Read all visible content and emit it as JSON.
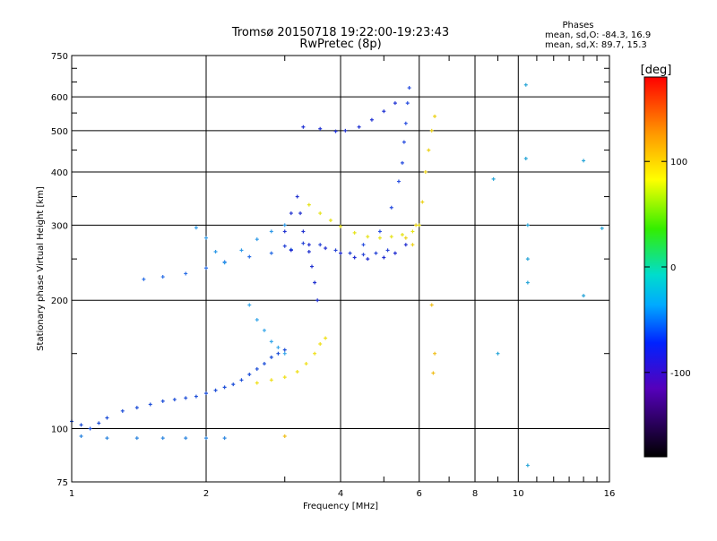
{
  "chart_data": {
    "type": "scatter",
    "title": "Tromsø 20150718 19:22:00-19:23:43",
    "subtitle": "RwPretec (8p)",
    "xlabel": "Frequency [MHz]",
    "ylabel": "Stationary phase Virtual Height [km]",
    "xscale": "log",
    "yscale": "log",
    "xlim": [
      1,
      16
    ],
    "ylim": [
      75,
      750
    ],
    "x_ticks": [
      1,
      2,
      4,
      6,
      8,
      10,
      16
    ],
    "x_tick_labels": [
      "1",
      "2",
      "4",
      "6",
      "8",
      "10",
      "16"
    ],
    "y_ticks": [
      75,
      100,
      200,
      300,
      400,
      500,
      600,
      750
    ],
    "y_tick_labels": [
      "75",
      "100",
      "200",
      "300",
      "400",
      "500",
      "600",
      "750"
    ],
    "grid": true,
    "stats": {
      "title": "Phases",
      "line_o": "mean, sd,O: -84.3, 16.9",
      "line_x": "mean, sd,X: 89.7, 15.3"
    },
    "colorbar": {
      "label": "[deg]",
      "ticks": [
        100,
        0,
        -100
      ],
      "tick_labels": [
        "100",
        "0",
        "-100"
      ],
      "range": [
        -180,
        180
      ],
      "placement": "right"
    },
    "series": [
      {
        "points": [
          [
            1.0,
            104
          ],
          [
            1.05,
            102
          ],
          [
            1.1,
            100
          ],
          [
            1.15,
            103
          ],
          [
            1.2,
            106
          ],
          [
            1.3,
            110
          ],
          [
            1.4,
            112
          ],
          [
            1.5,
            114
          ],
          [
            1.6,
            116
          ],
          [
            1.7,
            117
          ],
          [
            1.8,
            118
          ],
          [
            1.9,
            119
          ],
          [
            2.0,
            121
          ],
          [
            2.1,
            123
          ],
          [
            2.2,
            125
          ],
          [
            2.3,
            127
          ],
          [
            2.4,
            130
          ],
          [
            2.5,
            134
          ],
          [
            2.6,
            138
          ],
          [
            2.7,
            142
          ],
          [
            2.8,
            147
          ],
          [
            2.9,
            150
          ],
          [
            3.0,
            153
          ]
        ],
        "color": "#1e4fd8"
      },
      {
        "points": [
          [
            1.05,
            96
          ],
          [
            1.2,
            95
          ],
          [
            1.4,
            95
          ],
          [
            1.6,
            95
          ],
          [
            1.8,
            95
          ],
          [
            2.0,
            95
          ],
          [
            2.2,
            95
          ]
        ],
        "color": "#2f87e0"
      },
      {
        "points": [
          [
            1.45,
            224
          ],
          [
            1.6,
            227
          ],
          [
            1.8,
            231
          ],
          [
            2.0,
            238
          ],
          [
            2.2,
            246
          ],
          [
            2.5,
            253
          ],
          [
            2.8,
            258
          ],
          [
            3.1,
            263
          ]
        ],
        "color": "#2b6fe6"
      },
      {
        "points": [
          [
            1.9,
            296
          ],
          [
            2.0,
            280
          ],
          [
            2.1,
            260
          ],
          [
            2.2,
            245
          ],
          [
            2.4,
            262
          ],
          [
            2.6,
            278
          ],
          [
            2.8,
            290
          ],
          [
            3.0,
            300
          ]
        ],
        "color": "#2f9ae8"
      },
      {
        "points": [
          [
            2.5,
            195
          ],
          [
            2.6,
            180
          ],
          [
            2.7,
            170
          ],
          [
            2.8,
            160
          ],
          [
            2.9,
            155
          ],
          [
            3.0,
            150
          ]
        ],
        "color": "#3aa8ea"
      },
      {
        "points": [
          [
            3.0,
            290
          ],
          [
            3.1,
            320
          ],
          [
            3.2,
            350
          ],
          [
            3.25,
            320
          ],
          [
            3.3,
            290
          ],
          [
            3.4,
            260
          ],
          [
            3.45,
            240
          ],
          [
            3.5,
            220
          ],
          [
            3.55,
            200
          ]
        ],
        "color": "#2233d0"
      },
      {
        "points": [
          [
            3.1,
            262
          ],
          [
            3.4,
            270
          ],
          [
            3.7,
            265
          ],
          [
            4.0,
            258
          ],
          [
            4.3,
            252
          ],
          [
            4.6,
            250
          ],
          [
            5.0,
            252
          ],
          [
            5.3,
            258
          ],
          [
            5.6,
            270
          ]
        ],
        "color": "#1f2bd0"
      },
      {
        "points": [
          [
            3.0,
            268
          ],
          [
            3.3,
            272
          ],
          [
            3.6,
            270
          ],
          [
            3.9,
            262
          ],
          [
            4.2,
            258
          ],
          [
            4.5,
            256
          ],
          [
            4.8,
            258
          ],
          [
            5.1,
            262
          ]
        ],
        "color": "#2845d6"
      },
      {
        "points": [
          [
            3.3,
            510
          ],
          [
            3.6,
            505
          ],
          [
            3.9,
            498
          ],
          [
            4.1,
            500
          ],
          [
            4.4,
            510
          ],
          [
            4.7,
            530
          ],
          [
            5.0,
            555
          ],
          [
            5.3,
            580
          ]
        ],
        "color": "#2436d4"
      },
      {
        "points": [
          [
            4.5,
            270
          ],
          [
            4.9,
            290
          ],
          [
            5.2,
            330
          ],
          [
            5.4,
            380
          ],
          [
            5.5,
            420
          ],
          [
            5.55,
            470
          ],
          [
            5.6,
            520
          ],
          [
            5.65,
            580
          ],
          [
            5.7,
            630
          ]
        ],
        "color": "#2a4fe0"
      },
      {
        "points": [
          [
            3.4,
            335
          ],
          [
            3.6,
            320
          ],
          [
            3.8,
            308
          ],
          [
            4.0,
            298
          ],
          [
            4.3,
            288
          ],
          [
            4.6,
            282
          ],
          [
            4.9,
            280
          ],
          [
            5.2,
            282
          ],
          [
            5.5,
            285
          ],
          [
            5.8,
            290
          ],
          [
            6.0,
            300
          ]
        ],
        "color": "#e6e31a"
      },
      {
        "points": [
          [
            5.6,
            280
          ],
          [
            5.8,
            270
          ],
          [
            5.9,
            300
          ],
          [
            6.1,
            340
          ],
          [
            6.2,
            400
          ],
          [
            6.3,
            450
          ],
          [
            6.4,
            500
          ],
          [
            6.5,
            540
          ]
        ],
        "color": "#ecd21a"
      },
      {
        "points": [
          [
            2.6,
            128
          ],
          [
            2.8,
            130
          ],
          [
            3.0,
            132
          ],
          [
            3.2,
            136
          ],
          [
            3.35,
            142
          ],
          [
            3.5,
            150
          ],
          [
            3.6,
            158
          ],
          [
            3.7,
            163
          ]
        ],
        "color": "#f0e01a"
      },
      {
        "points": [
          [
            10.4,
            640
          ],
          [
            10.5,
            300
          ],
          [
            10.5,
            250
          ],
          [
            10.5,
            220
          ],
          [
            14.0,
            205
          ],
          [
            14.0,
            425
          ],
          [
            10.4,
            430
          ],
          [
            15.4,
            295
          ],
          [
            10.5,
            82
          ],
          [
            8.8,
            385
          ],
          [
            9.0,
            150
          ]
        ],
        "color": "#2aa6d8"
      },
      {
        "points": [
          [
            3.0,
            96
          ],
          [
            6.4,
            195
          ],
          [
            6.5,
            150
          ],
          [
            6.45,
            135
          ]
        ],
        "color": "#f0c020"
      }
    ]
  }
}
